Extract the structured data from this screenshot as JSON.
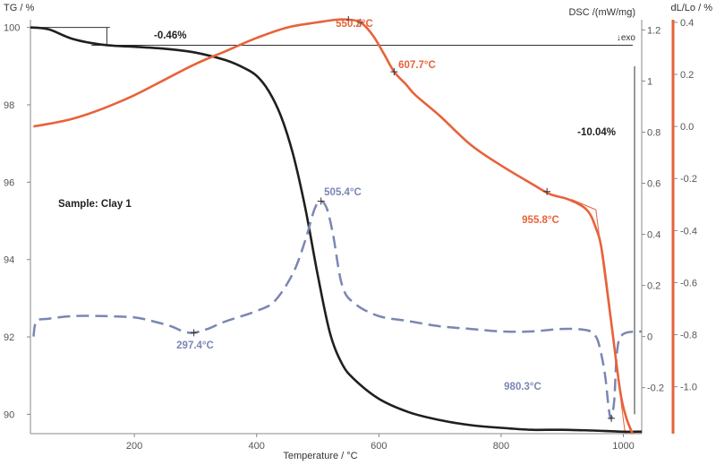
{
  "chart_data": {
    "type": "line",
    "title": "",
    "xlabel": "Temperature / °C",
    "xlim": [
      30,
      1030
    ],
    "x_ticks": [
      "200",
      "400",
      "600",
      "800",
      "1000"
    ],
    "axes": {
      "tg": {
        "label": "TG / %",
        "lim": [
          89.5,
          100.2
        ],
        "ticks": [
          "90",
          "92",
          "94",
          "96",
          "98",
          "100"
        ]
      },
      "dsc": {
        "label": "DSC /(mW/mg)",
        "exo_label": "↓exo",
        "lim": [
          -0.38,
          1.24
        ],
        "ticks": [
          "-0.2",
          "0",
          "0.2",
          "0.4",
          "0.6",
          "0.8",
          "1",
          "1.2"
        ]
      },
      "dl": {
        "label": "dL/Lo / %",
        "lim": [
          -1.18,
          0.41
        ],
        "ticks": [
          "-1.0",
          "-0.8",
          "-0.6",
          "-0.4",
          "-0.2",
          "0.0",
          "0.2",
          "0.4"
        ]
      }
    },
    "colors": {
      "tg": "#1f1f1f",
      "dsc": "#7a86b4",
      "dl": "#e8623a"
    },
    "series": [
      {
        "axis": "tg",
        "style": "solid",
        "x": [
          30,
          60,
          100,
          150,
          200,
          250,
          300,
          350,
          380,
          400,
          420,
          440,
          460,
          480,
          500,
          520,
          540,
          560,
          600,
          650,
          700,
          750,
          800,
          850,
          900,
          950,
          1000,
          1030
        ],
        "values": [
          100.0,
          99.95,
          99.7,
          99.55,
          99.5,
          99.45,
          99.35,
          99.15,
          98.95,
          98.75,
          98.35,
          97.7,
          96.7,
          95.3,
          93.6,
          92.1,
          91.3,
          90.9,
          90.4,
          90.05,
          89.85,
          89.72,
          89.65,
          89.6,
          89.6,
          89.58,
          89.55,
          89.55
        ]
      },
      {
        "axis": "dsc",
        "style": "dashed",
        "x": [
          35,
          40,
          60,
          100,
          150,
          200,
          230,
          260,
          280,
          297,
          320,
          350,
          400,
          430,
          460,
          480,
          495,
          505,
          515,
          525,
          540,
          560,
          600,
          650,
          700,
          750,
          800,
          850,
          900,
          940,
          955,
          962,
          970,
          976,
          980,
          985,
          990,
          1000,
          1030
        ],
        "values": [
          0.0,
          0.06,
          0.07,
          0.08,
          0.08,
          0.075,
          0.06,
          0.04,
          0.02,
          0.015,
          0.03,
          0.06,
          0.1,
          0.14,
          0.25,
          0.38,
          0.5,
          0.53,
          0.5,
          0.4,
          0.2,
          0.13,
          0.08,
          0.06,
          0.04,
          0.03,
          0.02,
          0.02,
          0.03,
          0.025,
          0.0,
          -0.05,
          -0.15,
          -0.28,
          -0.32,
          -0.25,
          -0.05,
          0.01,
          0.02
        ]
      },
      {
        "axis": "dl",
        "style": "solid",
        "x": [
          35,
          60,
          100,
          150,
          200,
          250,
          300,
          350,
          400,
          450,
          500,
          530,
          550,
          570,
          590,
          608,
          625,
          645,
          660,
          700,
          750,
          800,
          850,
          880,
          910,
          940,
          955,
          965,
          980,
          995,
          1005,
          1015
        ],
        "values": [
          0.0,
          0.01,
          0.03,
          0.07,
          0.12,
          0.18,
          0.24,
          0.29,
          0.34,
          0.38,
          0.4,
          0.41,
          0.41,
          0.4,
          0.35,
          0.28,
          0.21,
          0.16,
          0.12,
          0.04,
          -0.07,
          -0.15,
          -0.22,
          -0.26,
          -0.28,
          -0.32,
          -0.39,
          -0.48,
          -0.75,
          -1.02,
          -1.12,
          -1.18
        ]
      }
    ],
    "annotations": [
      {
        "text": "-0.46%",
        "color": "#1f1f1f"
      },
      {
        "text": "-10.04%",
        "color": "#1f1f1f"
      },
      {
        "text": "Sample: Clay 1",
        "color": "#1f1f1f"
      },
      {
        "text": "550.2°C",
        "color": "#e8623a"
      },
      {
        "text": "607.7°C",
        "color": "#e8623a"
      },
      {
        "text": "955.8°C",
        "color": "#e8623a"
      },
      {
        "text": "505.4°C",
        "color": "#7a86b4"
      },
      {
        "text": "297.4°C",
        "color": "#7a86b4"
      },
      {
        "text": "980.3°C",
        "color": "#7a86b4"
      }
    ]
  }
}
